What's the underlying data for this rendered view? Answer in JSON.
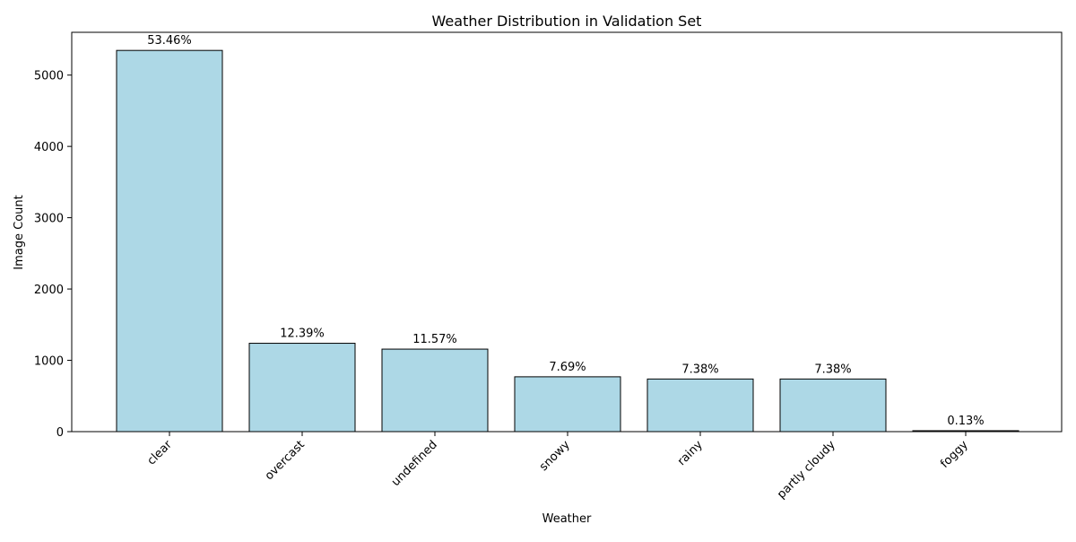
{
  "chart_data": {
    "type": "bar",
    "title": "Weather Distribution in Validation Set",
    "xlabel": "Weather",
    "ylabel": "Image Count",
    "categories": [
      "clear",
      "overcast",
      "undefined",
      "snowy",
      "rainy",
      "partly cloudy",
      "foggy"
    ],
    "values": [
      5346,
      1239,
      1157,
      769,
      738,
      738,
      13
    ],
    "data_labels": [
      "53.46%",
      "12.39%",
      "11.57%",
      "7.69%",
      "7.38%",
      "7.38%",
      "0.13%"
    ],
    "ylim": [
      0,
      5600
    ],
    "yticks": [
      0,
      1000,
      2000,
      3000,
      4000,
      5000
    ],
    "grid": false,
    "legend": "none",
    "bar_color": "#add8e6",
    "bar_edge_color": "#000000",
    "xtick_rotation": "45"
  }
}
